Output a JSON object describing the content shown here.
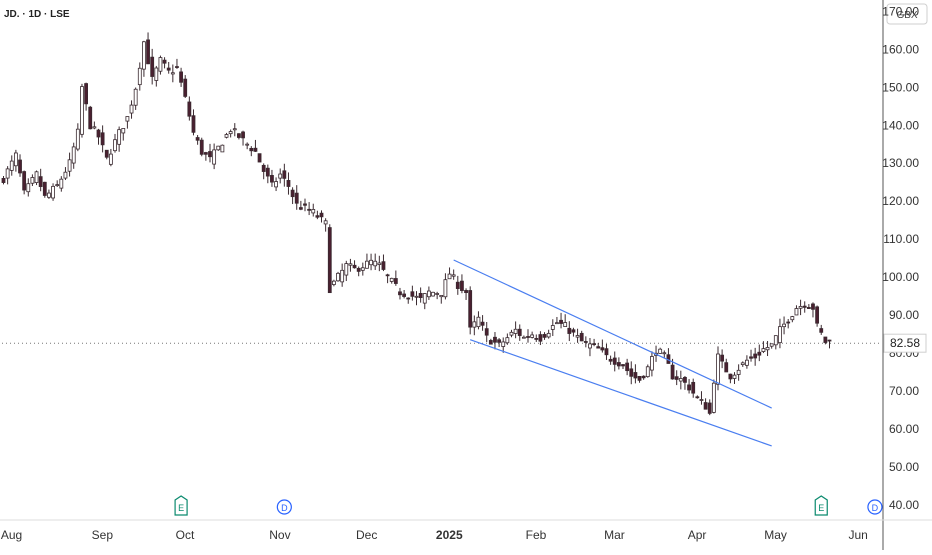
{
  "header": {
    "symbol_line": "JD. · 1D · LSE"
  },
  "currency_badge": "GBX",
  "last_price_label": "82.58",
  "colors": {
    "up": "#ffffff",
    "down": "#4a2030",
    "wick": "#3a2a30",
    "trendline": "#4a7ef0",
    "grid_axis": "#888888",
    "price_line": "#777777",
    "earnings_badge": "#0a8a6e",
    "dividend_badge": "#2962ff"
  },
  "event_markers": [
    {
      "label": "E",
      "type": "earnings",
      "date": "Sep 30"
    },
    {
      "label": "D",
      "type": "dividend",
      "date": "Nov 05"
    },
    {
      "label": "E",
      "type": "earnings",
      "date": "May 20"
    },
    {
      "label": "D",
      "type": "dividend",
      "date": "Jun 05"
    }
  ],
  "chart_data": {
    "type": "candlestick",
    "title": "",
    "xlabel": "",
    "ylabel": "",
    "x_ticks": [
      {
        "label": "Aug",
        "bar": 0
      },
      {
        "label": "Sep",
        "bar": 22
      },
      {
        "label": "Oct",
        "bar": 42
      },
      {
        "label": "Nov",
        "bar": 65
      },
      {
        "label": "Dec",
        "bar": 86
      },
      {
        "label": "2025",
        "bar": 106,
        "bold": true
      },
      {
        "label": "Feb",
        "bar": 127
      },
      {
        "label": "Mar",
        "bar": 146
      },
      {
        "label": "Apr",
        "bar": 166
      },
      {
        "label": "May",
        "bar": 185
      },
      {
        "label": "Jun",
        "bar": 205
      }
    ],
    "y_ticks": [
      "40.00",
      "50.00",
      "60.00",
      "70.00",
      "80.00",
      "90.00",
      "100.00",
      "110.00",
      "120.00",
      "130.00",
      "140.00",
      "150.00",
      "160.00",
      "170.00"
    ],
    "ylim": [
      36,
      173
    ],
    "bar_count": 215,
    "last_price": 82.58,
    "trendlines": [
      {
        "from": {
          "bar": 109,
          "price": 104.5
        },
        "to": {
          "bar": 186,
          "price": 65.5
        }
      },
      {
        "from": {
          "bar": 113,
          "price": 83.5
        },
        "to": {
          "bar": 186,
          "price": 55.5
        }
      }
    ],
    "anchors": [
      [
        0,
        126
      ],
      [
        3,
        132
      ],
      [
        5,
        122
      ],
      [
        8,
        127
      ],
      [
        10,
        121
      ],
      [
        13,
        124
      ],
      [
        16,
        130
      ],
      [
        18,
        138
      ],
      [
        19,
        150
      ],
      [
        21,
        140
      ],
      [
        23,
        137
      ],
      [
        25,
        131
      ],
      [
        28,
        138
      ],
      [
        30,
        142
      ],
      [
        32,
        150
      ],
      [
        34,
        162
      ],
      [
        36,
        152
      ],
      [
        38,
        157
      ],
      [
        40,
        154
      ],
      [
        42,
        155
      ],
      [
        44,
        147
      ],
      [
        46,
        138
      ],
      [
        48,
        133
      ],
      [
        50,
        131
      ],
      [
        52,
        134
      ],
      [
        55,
        139
      ],
      [
        57,
        137
      ],
      [
        59,
        135
      ],
      [
        61,
        133
      ],
      [
        63,
        128
      ],
      [
        65,
        124
      ],
      [
        67,
        127
      ],
      [
        69,
        124
      ],
      [
        71,
        119
      ],
      [
        73,
        118
      ],
      [
        75,
        117
      ],
      [
        78,
        114
      ],
      [
        79,
        97
      ],
      [
        81,
        100
      ],
      [
        83,
        103
      ],
      [
        85,
        102
      ],
      [
        87,
        103
      ],
      [
        89,
        104
      ],
      [
        91,
        103
      ],
      [
        93,
        100
      ],
      [
        96,
        96
      ],
      [
        99,
        95
      ],
      [
        101,
        94
      ],
      [
        103,
        96
      ],
      [
        106,
        96
      ],
      [
        108,
        101
      ],
      [
        110,
        98
      ],
      [
        112,
        96
      ],
      [
        113,
        86
      ],
      [
        115,
        89
      ],
      [
        117,
        84
      ],
      [
        120,
        82
      ],
      [
        122,
        84
      ],
      [
        124,
        86
      ],
      [
        126,
        84
      ],
      [
        128,
        85
      ],
      [
        130,
        84
      ],
      [
        132,
        86
      ],
      [
        134,
        88
      ],
      [
        136,
        87
      ],
      [
        138,
        85
      ],
      [
        140,
        83
      ],
      [
        142,
        82
      ],
      [
        144,
        81
      ],
      [
        146,
        79
      ],
      [
        148,
        78
      ],
      [
        150,
        77
      ],
      [
        152,
        74
      ],
      [
        154,
        73
      ],
      [
        156,
        76
      ],
      [
        158,
        81
      ],
      [
        160,
        79
      ],
      [
        162,
        74
      ],
      [
        164,
        73
      ],
      [
        166,
        71
      ],
      [
        168,
        68
      ],
      [
        170,
        66
      ],
      [
        171,
        64
      ],
      [
        172,
        73
      ],
      [
        173,
        79
      ],
      [
        174,
        77
      ],
      [
        176,
        74
      ],
      [
        178,
        76
      ],
      [
        180,
        78
      ],
      [
        182,
        79
      ],
      [
        184,
        81
      ],
      [
        186,
        82
      ],
      [
        188,
        86
      ],
      [
        190,
        89
      ],
      [
        192,
        92
      ],
      [
        194,
        93
      ],
      [
        196,
        92
      ],
      [
        197,
        87
      ],
      [
        199,
        83
      ],
      [
        200,
        83
      ]
    ]
  }
}
